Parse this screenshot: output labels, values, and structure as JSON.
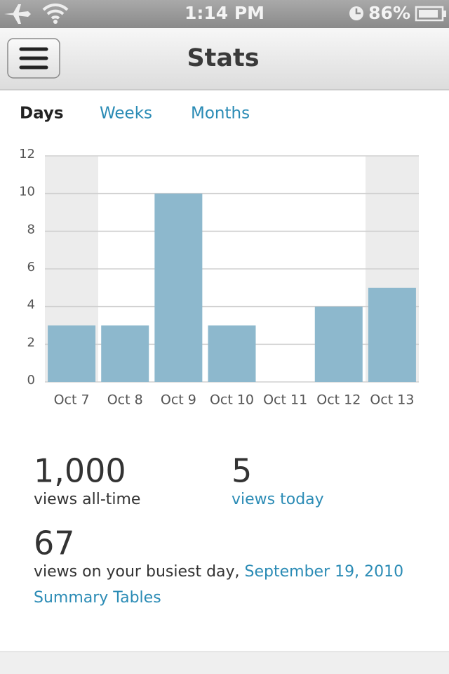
{
  "status_bar": {
    "time": "1:14 PM",
    "battery": "86%"
  },
  "nav": {
    "title": "Stats"
  },
  "tabs": [
    "Days",
    "Weeks",
    "Months"
  ],
  "chart_data": {
    "type": "bar",
    "categories": [
      "Oct 7",
      "Oct 8",
      "Oct 9",
      "Oct 10",
      "Oct 11",
      "Oct 12",
      "Oct 13"
    ],
    "values": [
      3,
      3,
      10,
      3,
      0,
      4,
      5
    ],
    "color": "#8db8cd",
    "ylim": [
      0,
      12
    ],
    "yticks": [
      0,
      2,
      4,
      6,
      8,
      10,
      12
    ],
    "grid": true
  },
  "stats": {
    "all_time": {
      "value": "1,000",
      "label": "views all-time"
    },
    "today": {
      "value": 5,
      "label": "views today"
    },
    "busiest": {
      "value": 67,
      "label": "views on your busiest day,",
      "date": "September 19, 2010"
    },
    "link": "Summary Tables"
  }
}
